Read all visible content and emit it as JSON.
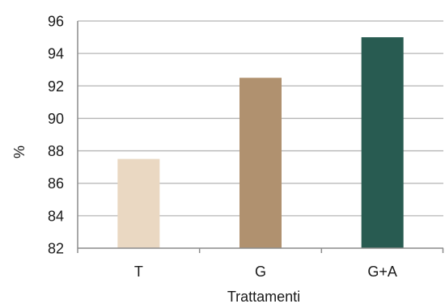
{
  "chart_data": {
    "type": "bar",
    "categories": [
      "T",
      "G",
      "G+A"
    ],
    "values": [
      87.5,
      92.5,
      95
    ],
    "colors": [
      "#ead8c2",
      "#b0916f",
      "#285b51"
    ],
    "xlabel": "Trattamenti",
    "ylabel": "%",
    "ylim": [
      82,
      96
    ],
    "yticks": [
      82,
      84,
      86,
      88,
      90,
      92,
      94,
      96
    ],
    "ytick_labels": [
      "82",
      "84",
      "86",
      "88",
      "90",
      "92",
      "94",
      "96"
    ],
    "grid": true,
    "legend": "none",
    "gridline_color": "#b5b5b5",
    "axis_color": "#8c8c8c"
  }
}
